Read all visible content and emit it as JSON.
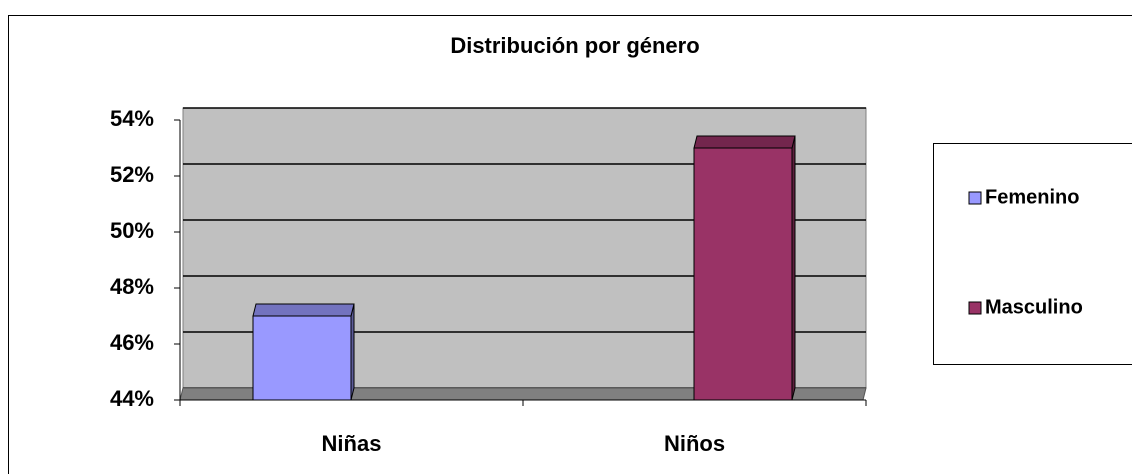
{
  "chart_data": {
    "type": "bar",
    "title": "Distribución por género",
    "categories": [
      "Niñas",
      "Niños"
    ],
    "series": [
      {
        "name": "Femenino",
        "color": "#9999ff",
        "values": [
          47,
          null
        ]
      },
      {
        "name": "Masculino",
        "color": "#993366",
        "values": [
          null,
          53
        ]
      }
    ],
    "ylim": [
      44,
      54
    ],
    "yticks": [
      {
        "value": 44,
        "label": "44%"
      },
      {
        "value": 46,
        "label": "46%"
      },
      {
        "value": 48,
        "label": "48%"
      },
      {
        "value": 50,
        "label": "50%"
      },
      {
        "value": 52,
        "label": "52%"
      },
      {
        "value": 54,
        "label": "54%"
      }
    ],
    "grid": true,
    "legend": "right"
  }
}
